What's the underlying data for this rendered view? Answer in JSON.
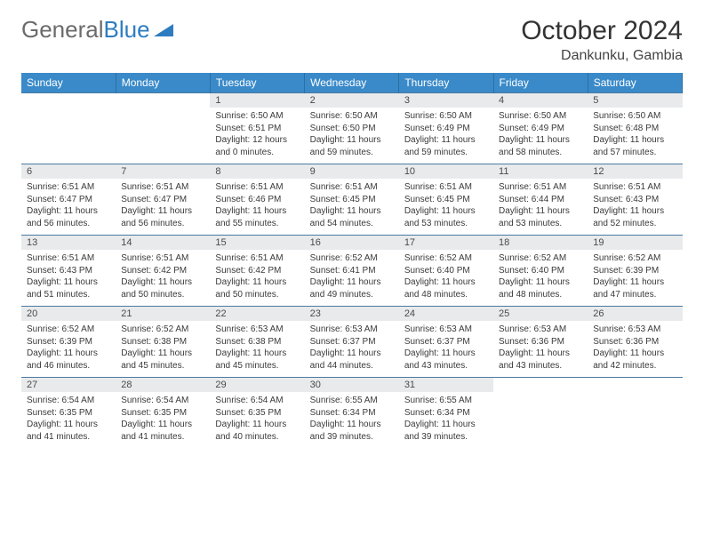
{
  "brand": {
    "part1": "General",
    "part2": "Blue"
  },
  "title": "October 2024",
  "location": "Dankunku, Gambia",
  "colors": {
    "header_bg": "#3a8ac9",
    "header_text": "#ffffff",
    "num_bg": "#e8eaec",
    "num_text": "#4a4a4a",
    "body_text": "#3a3a3a",
    "rule": "#4a7aa0",
    "brand_gray": "#6b6b6b",
    "brand_blue": "#2e7cc0"
  },
  "day_names": [
    "Sunday",
    "Monday",
    "Tuesday",
    "Wednesday",
    "Thursday",
    "Friday",
    "Saturday"
  ],
  "weeks": [
    [
      null,
      null,
      {
        "n": "1",
        "sr": "6:50 AM",
        "ss": "6:51 PM",
        "dl": "12 hours and 0 minutes."
      },
      {
        "n": "2",
        "sr": "6:50 AM",
        "ss": "6:50 PM",
        "dl": "11 hours and 59 minutes."
      },
      {
        "n": "3",
        "sr": "6:50 AM",
        "ss": "6:49 PM",
        "dl": "11 hours and 59 minutes."
      },
      {
        "n": "4",
        "sr": "6:50 AM",
        "ss": "6:49 PM",
        "dl": "11 hours and 58 minutes."
      },
      {
        "n": "5",
        "sr": "6:50 AM",
        "ss": "6:48 PM",
        "dl": "11 hours and 57 minutes."
      }
    ],
    [
      {
        "n": "6",
        "sr": "6:51 AM",
        "ss": "6:47 PM",
        "dl": "11 hours and 56 minutes."
      },
      {
        "n": "7",
        "sr": "6:51 AM",
        "ss": "6:47 PM",
        "dl": "11 hours and 56 minutes."
      },
      {
        "n": "8",
        "sr": "6:51 AM",
        "ss": "6:46 PM",
        "dl": "11 hours and 55 minutes."
      },
      {
        "n": "9",
        "sr": "6:51 AM",
        "ss": "6:45 PM",
        "dl": "11 hours and 54 minutes."
      },
      {
        "n": "10",
        "sr": "6:51 AM",
        "ss": "6:45 PM",
        "dl": "11 hours and 53 minutes."
      },
      {
        "n": "11",
        "sr": "6:51 AM",
        "ss": "6:44 PM",
        "dl": "11 hours and 53 minutes."
      },
      {
        "n": "12",
        "sr": "6:51 AM",
        "ss": "6:43 PM",
        "dl": "11 hours and 52 minutes."
      }
    ],
    [
      {
        "n": "13",
        "sr": "6:51 AM",
        "ss": "6:43 PM",
        "dl": "11 hours and 51 minutes."
      },
      {
        "n": "14",
        "sr": "6:51 AM",
        "ss": "6:42 PM",
        "dl": "11 hours and 50 minutes."
      },
      {
        "n": "15",
        "sr": "6:51 AM",
        "ss": "6:42 PM",
        "dl": "11 hours and 50 minutes."
      },
      {
        "n": "16",
        "sr": "6:52 AM",
        "ss": "6:41 PM",
        "dl": "11 hours and 49 minutes."
      },
      {
        "n": "17",
        "sr": "6:52 AM",
        "ss": "6:40 PM",
        "dl": "11 hours and 48 minutes."
      },
      {
        "n": "18",
        "sr": "6:52 AM",
        "ss": "6:40 PM",
        "dl": "11 hours and 48 minutes."
      },
      {
        "n": "19",
        "sr": "6:52 AM",
        "ss": "6:39 PM",
        "dl": "11 hours and 47 minutes."
      }
    ],
    [
      {
        "n": "20",
        "sr": "6:52 AM",
        "ss": "6:39 PM",
        "dl": "11 hours and 46 minutes."
      },
      {
        "n": "21",
        "sr": "6:52 AM",
        "ss": "6:38 PM",
        "dl": "11 hours and 45 minutes."
      },
      {
        "n": "22",
        "sr": "6:53 AM",
        "ss": "6:38 PM",
        "dl": "11 hours and 45 minutes."
      },
      {
        "n": "23",
        "sr": "6:53 AM",
        "ss": "6:37 PM",
        "dl": "11 hours and 44 minutes."
      },
      {
        "n": "24",
        "sr": "6:53 AM",
        "ss": "6:37 PM",
        "dl": "11 hours and 43 minutes."
      },
      {
        "n": "25",
        "sr": "6:53 AM",
        "ss": "6:36 PM",
        "dl": "11 hours and 43 minutes."
      },
      {
        "n": "26",
        "sr": "6:53 AM",
        "ss": "6:36 PM",
        "dl": "11 hours and 42 minutes."
      }
    ],
    [
      {
        "n": "27",
        "sr": "6:54 AM",
        "ss": "6:35 PM",
        "dl": "11 hours and 41 minutes."
      },
      {
        "n": "28",
        "sr": "6:54 AM",
        "ss": "6:35 PM",
        "dl": "11 hours and 41 minutes."
      },
      {
        "n": "29",
        "sr": "6:54 AM",
        "ss": "6:35 PM",
        "dl": "11 hours and 40 minutes."
      },
      {
        "n": "30",
        "sr": "6:55 AM",
        "ss": "6:34 PM",
        "dl": "11 hours and 39 minutes."
      },
      {
        "n": "31",
        "sr": "6:55 AM",
        "ss": "6:34 PM",
        "dl": "11 hours and 39 minutes."
      },
      null,
      null
    ]
  ],
  "labels": {
    "sunrise": "Sunrise:",
    "sunset": "Sunset:",
    "daylight": "Daylight:"
  }
}
